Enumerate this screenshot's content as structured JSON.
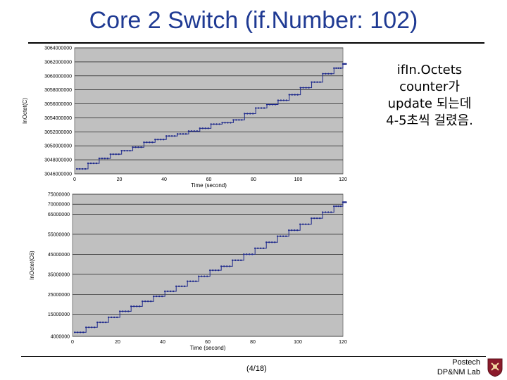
{
  "slide": {
    "title": "Core 2 Switch (if.Number: 102)",
    "note_lines": [
      "ifIn.Octets",
      "counter가",
      "update 되는데",
      "4-5초씩 걸렸음."
    ],
    "page": "(4/18)",
    "footer_lines": [
      "Postech",
      "DP&NM Lab"
    ]
  },
  "colors": {
    "title": "#1f3a93",
    "plot_bg": "#c0c0c0",
    "series": "#1f2a8c",
    "grid": "#000000"
  },
  "chart_data": [
    {
      "type": "line",
      "xlabel": "Time (second)",
      "ylabel": "InOctet(C)",
      "xlim": [
        0,
        120
      ],
      "ylim": [
        3046000000,
        3064000000
      ],
      "x_ticks": [
        "0",
        "20",
        "40",
        "60",
        "80",
        "100",
        "120"
      ],
      "y_ticks": [
        "3046000000",
        "3048000000",
        "3050000000",
        "3052000000",
        "3054000000",
        "3056000000",
        "3058000000",
        "3060000000",
        "3062000000",
        "3064000000"
      ],
      "grid": "horizontal",
      "series": [
        {
          "x": [
            1,
            6,
            11,
            16,
            21,
            26,
            31,
            36,
            41,
            46,
            51,
            56,
            61,
            66,
            71,
            76,
            81,
            86,
            91,
            96,
            101,
            106,
            111,
            116,
            120
          ],
          "y": [
            3046700000,
            3047500000,
            3048200000,
            3048800000,
            3049300000,
            3049800000,
            3050500000,
            3050900000,
            3051400000,
            3051700000,
            3052100000,
            3052500000,
            3053100000,
            3053300000,
            3053700000,
            3054600000,
            3055400000,
            3055900000,
            3056500000,
            3057300000,
            3058300000,
            3059100000,
            3060300000,
            3061100000,
            3061700000
          ]
        }
      ]
    },
    {
      "type": "line",
      "xlabel": "Time (second)",
      "ylabel": "InOctet(C6)",
      "xlim": [
        0,
        120
      ],
      "ylim": [
        4000000,
        75000000
      ],
      "x_ticks": [
        "0",
        "20",
        "40",
        "60",
        "80",
        "100",
        "120"
      ],
      "y_ticks": [
        "4000000",
        "15000000",
        "25000000",
        "35000000",
        "45000000",
        "55000000",
        "65000000",
        "70000000",
        "75000000"
      ],
      "grid": "horizontal",
      "series": [
        {
          "x": [
            1,
            6,
            11,
            16,
            21,
            26,
            31,
            36,
            41,
            46,
            51,
            56,
            61,
            66,
            71,
            76,
            81,
            86,
            91,
            96,
            101,
            106,
            111,
            116,
            120
          ],
          "y": [
            6000000,
            8500000,
            11000000,
            13500000,
            16500000,
            19000000,
            21500000,
            24000000,
            26500000,
            29000000,
            31500000,
            34000000,
            37000000,
            39000000,
            42000000,
            45000000,
            48000000,
            51000000,
            54000000,
            57000000,
            60000000,
            63000000,
            66000000,
            69000000,
            71000000
          ]
        }
      ]
    }
  ]
}
